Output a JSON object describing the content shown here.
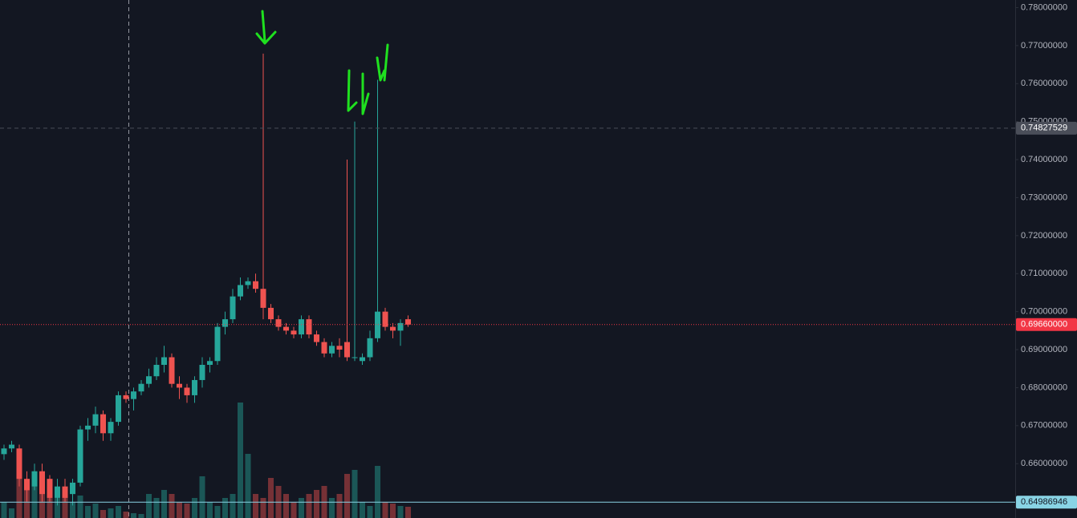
{
  "chart_data": {
    "type": "candlestick",
    "open": [
      0.6625,
      0.664,
      0.664,
      0.656,
      0.654,
      0.658,
      0.656,
      0.651,
      0.654,
      0.652,
      0.655,
      0.669,
      0.67,
      0.673,
      0.668,
      0.671,
      0.678,
      0.677,
      0.679,
      0.681,
      0.683,
      0.686,
      0.688,
      0.681,
      0.68,
      0.678,
      0.682,
      0.686,
      0.687,
      0.696,
      0.698,
      0.704,
      0.707,
      0.708,
      0.706,
      0.701,
      0.698,
      0.696,
      0.695,
      0.694,
      0.698,
      0.694,
      0.692,
      0.689,
      0.691,
      0.692,
      0.688,
      0.687,
      0.688,
      0.693,
      0.7,
      0.696,
      0.695,
      0.698
    ],
    "high": [
      0.665,
      0.666,
      0.665,
      0.658,
      0.66,
      0.66,
      0.657,
      0.656,
      0.656,
      0.656,
      0.67,
      0.672,
      0.675,
      0.674,
      0.672,
      0.679,
      0.679,
      0.68,
      0.682,
      0.685,
      0.688,
      0.691,
      0.689,
      0.683,
      0.681,
      0.683,
      0.688,
      0.688,
      0.697,
      0.7,
      0.706,
      0.709,
      0.709,
      0.71,
      0.7679,
      0.702,
      0.699,
      0.697,
      0.696,
      0.699,
      0.699,
      0.695,
      0.693,
      0.692,
      0.693,
      0.74,
      0.75,
      0.689,
      0.695,
      0.761,
      0.701,
      0.697,
      0.698,
      0.699
    ],
    "low": [
      0.661,
      0.663,
      0.654,
      0.65,
      0.653,
      0.65,
      0.65,
      0.649,
      0.65,
      0.649,
      0.654,
      0.666,
      0.668,
      0.666,
      0.666,
      0.67,
      0.676,
      0.674,
      0.678,
      0.68,
      0.682,
      0.684,
      0.68,
      0.677,
      0.676,
      0.676,
      0.68,
      0.684,
      0.686,
      0.694,
      0.697,
      0.703,
      0.706,
      0.705,
      0.698,
      0.697,
      0.695,
      0.694,
      0.693,
      0.693,
      0.693,
      0.691,
      0.688,
      0.688,
      0.688,
      0.687,
      0.687,
      0.686,
      0.687,
      0.692,
      0.695,
      0.693,
      0.691,
      0.696
    ],
    "close": [
      0.664,
      0.665,
      0.656,
      0.653,
      0.658,
      0.652,
      0.651,
      0.654,
      0.651,
      0.655,
      0.669,
      0.67,
      0.673,
      0.668,
      0.671,
      0.678,
      0.677,
      0.679,
      0.681,
      0.683,
      0.686,
      0.688,
      0.681,
      0.68,
      0.678,
      0.682,
      0.686,
      0.687,
      0.696,
      0.698,
      0.704,
      0.707,
      0.708,
      0.706,
      0.701,
      0.698,
      0.696,
      0.695,
      0.694,
      0.698,
      0.694,
      0.692,
      0.689,
      0.691,
      0.69,
      0.688,
      0.688,
      0.688,
      0.693,
      0.7,
      0.696,
      0.695,
      0.697,
      0.6966
    ],
    "volume": [
      20,
      12,
      55,
      35,
      45,
      30,
      40,
      25,
      30,
      20,
      28,
      15,
      18,
      10,
      12,
      15,
      8,
      6,
      5,
      30,
      25,
      35,
      30,
      20,
      18,
      25,
      52,
      20,
      15,
      25,
      30,
      144,
      80,
      30,
      25,
      50,
      40,
      30,
      20,
      25,
      30,
      35,
      40,
      25,
      30,
      55,
      60,
      20,
      15,
      65,
      20,
      18,
      15,
      14
    ],
    "up_color": "#26a69a",
    "down_color": "#ef5350",
    "ylim": [
      0.6457,
      0.782
    ],
    "yticks": [
      {
        "value": 0.66,
        "label": "0.66000000"
      },
      {
        "value": 0.67,
        "label": "0.67000000"
      },
      {
        "value": 0.68,
        "label": "0.68000000"
      },
      {
        "value": 0.69,
        "label": "0.69000000"
      },
      {
        "value": 0.7,
        "label": "0.70000000"
      },
      {
        "value": 0.71,
        "label": "0.71000000"
      },
      {
        "value": 0.72,
        "label": "0.72000000"
      },
      {
        "value": 0.73,
        "label": "0.73000000"
      },
      {
        "value": 0.74,
        "label": "0.74000000"
      },
      {
        "value": 0.75,
        "label": "0.75000000"
      },
      {
        "value": 0.76,
        "label": "0.76000000"
      },
      {
        "value": 0.77,
        "label": "0.77000000"
      },
      {
        "value": 0.78,
        "label": "0.78000000"
      }
    ],
    "price_labels": [
      {
        "value": 0.6966,
        "label": "0.69660000",
        "color": "#f23645",
        "line": "dotted"
      },
      {
        "value": 0.74827529,
        "label": "0.74827529",
        "color": "#4a4e59",
        "line": "dashed"
      },
      {
        "value": 0.64986946,
        "label": "0.64986946",
        "color": "#89d4e5",
        "line": "solid"
      }
    ]
  }
}
